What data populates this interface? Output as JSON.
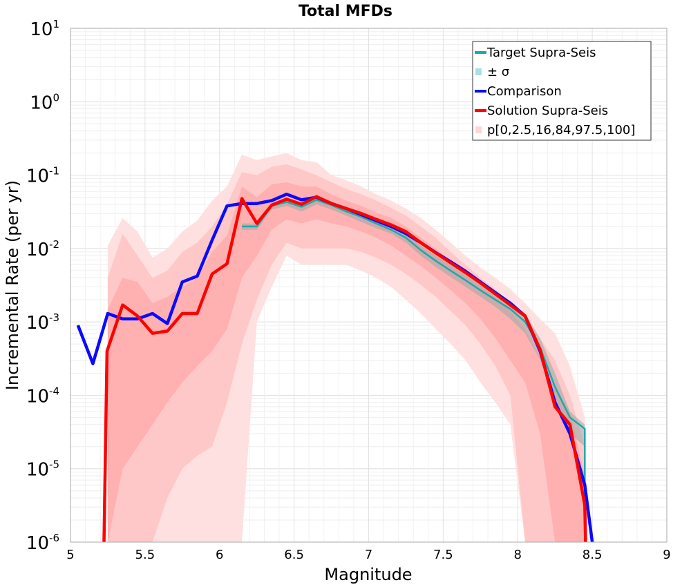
{
  "chart_data": {
    "type": "line",
    "title": "Total MFDs",
    "xlabel": "Magnitude",
    "ylabel": "Incremental Rate (per yr)",
    "xlim": [
      5,
      9
    ],
    "ylim": [
      1e-06,
      10
    ],
    "yscale": "log",
    "grid": true,
    "legend_position": "top-right",
    "x_ticks": [
      "5",
      "5.5",
      "6",
      "6.5",
      "7",
      "7.5",
      "8",
      "8.5",
      "9"
    ],
    "y_ticks": [
      {
        "base": "10",
        "exp": "1"
      },
      {
        "base": "10",
        "exp": "0"
      },
      {
        "base": "10",
        "exp": "-1"
      },
      {
        "base": "10",
        "exp": "-2"
      },
      {
        "base": "10",
        "exp": "-3"
      },
      {
        "base": "10",
        "exp": "-4"
      },
      {
        "base": "10",
        "exp": "-5"
      },
      {
        "base": "10",
        "exp": "-6"
      }
    ],
    "legend": [
      {
        "label": "Target Supra-Seis",
        "kind": "line",
        "color": "#1fa8a8"
      },
      {
        "label": "± σ",
        "kind": "box",
        "color": "#a8e0e4"
      },
      {
        "label": "Comparison",
        "kind": "line",
        "color": "#0a0aff"
      },
      {
        "label": "Solution Supra-Seis",
        "kind": "line",
        "color": "#ff0000"
      },
      {
        "label": "p[0,2.5,16,84,97.5,100]",
        "kind": "box",
        "color": "#ffd6d6"
      }
    ],
    "bands": [
      {
        "name": "p0-p100",
        "color": "#ffe0e0",
        "x": [
          5.25,
          5.35,
          5.45,
          5.55,
          5.65,
          5.75,
          5.85,
          5.95,
          6.05,
          6.15,
          6.25,
          6.35,
          6.45,
          6.55,
          6.65,
          6.75,
          6.85,
          6.95,
          7.05,
          7.15,
          7.25,
          7.35,
          7.45,
          7.55,
          7.65,
          7.75,
          7.85,
          7.95,
          8.05,
          8.15,
          8.25,
          8.35,
          8.45
        ],
        "upper": [
          0.011,
          0.026,
          0.017,
          0.0075,
          0.01,
          0.017,
          0.024,
          0.045,
          0.07,
          0.19,
          0.16,
          0.18,
          0.2,
          0.16,
          0.15,
          0.1,
          0.085,
          0.07,
          0.055,
          0.045,
          0.035,
          0.026,
          0.018,
          0.012,
          0.008,
          0.0055,
          0.004,
          0.0028,
          0.0018,
          0.0011,
          0.0007,
          0.00025,
          5e-05
        ],
        "lower": [
          1e-06,
          5e-06,
          1e-06,
          1e-06,
          1e-06,
          1e-06,
          1e-06,
          1e-06,
          1e-06,
          1e-06,
          0.001,
          0.003,
          0.008,
          0.006,
          0.006,
          0.006,
          0.006,
          0.005,
          0.004,
          0.003,
          0.002,
          0.0013,
          0.0008,
          0.0005,
          0.0003,
          0.00015,
          8e-05,
          4e-05,
          1e-06,
          1e-06,
          1e-06,
          1e-06,
          1e-06
        ]
      },
      {
        "name": "p2.5-p97.5",
        "color": "#ffc8c8",
        "x": [
          5.25,
          5.35,
          5.45,
          5.55,
          5.65,
          5.75,
          5.85,
          5.95,
          6.05,
          6.15,
          6.25,
          6.35,
          6.45,
          6.55,
          6.65,
          6.75,
          6.85,
          6.95,
          7.05,
          7.15,
          7.25,
          7.35,
          7.45,
          7.55,
          7.65,
          7.75,
          7.85,
          7.95,
          8.05,
          8.15,
          8.25,
          8.35,
          8.45
        ],
        "upper": [
          0.004,
          0.016,
          0.008,
          0.004,
          0.005,
          0.009,
          0.012,
          0.02,
          0.04,
          0.11,
          0.1,
          0.13,
          0.14,
          0.12,
          0.1,
          0.08,
          0.065,
          0.055,
          0.045,
          0.036,
          0.028,
          0.02,
          0.014,
          0.009,
          0.006,
          0.004,
          0.0028,
          0.0018,
          0.0011,
          0.0006,
          0.0003,
          0.0001,
          2e-05
        ],
        "lower": [
          1e-06,
          1e-06,
          1e-06,
          1e-06,
          4e-06,
          1e-05,
          1.5e-05,
          2e-05,
          8e-05,
          0.0005,
          0.002,
          0.006,
          0.012,
          0.01,
          0.01,
          0.01,
          0.01,
          0.009,
          0.0075,
          0.006,
          0.0045,
          0.0032,
          0.0022,
          0.0014,
          0.0009,
          0.0005,
          0.00025,
          0.0001,
          1e-06,
          1e-06,
          1e-06,
          1e-06,
          1e-06
        ]
      },
      {
        "name": "p16-p84",
        "color": "#ffb0b0",
        "x": [
          5.25,
          5.35,
          5.45,
          5.55,
          5.65,
          5.75,
          5.85,
          5.95,
          6.05,
          6.15,
          6.25,
          6.35,
          6.45,
          6.55,
          6.65,
          6.75,
          6.85,
          6.95,
          7.05,
          7.15,
          7.25,
          7.35,
          7.45,
          7.55,
          7.65,
          7.75,
          7.85,
          7.95,
          8.05,
          8.15,
          8.25,
          8.35,
          8.45
        ],
        "upper": [
          0.0015,
          0.004,
          0.0035,
          0.0018,
          0.0022,
          0.003,
          0.004,
          0.009,
          0.015,
          0.07,
          0.05,
          0.075,
          0.08,
          0.07,
          0.07,
          0.055,
          0.045,
          0.038,
          0.031,
          0.026,
          0.02,
          0.014,
          0.01,
          0.0068,
          0.0046,
          0.0032,
          0.0022,
          0.0014,
          0.0008,
          0.0003,
          0.00012,
          6e-05,
          8e-06
        ],
        "lower": [
          1e-06,
          1e-05,
          2e-05,
          4e-05,
          8e-05,
          0.00015,
          0.00025,
          0.0004,
          0.0008,
          0.004,
          0.008,
          0.018,
          0.025,
          0.022,
          0.025,
          0.022,
          0.02,
          0.017,
          0.014,
          0.011,
          0.008,
          0.0058,
          0.004,
          0.0027,
          0.0018,
          0.0011,
          0.0006,
          0.0003,
          0.00015,
          3e-05,
          1e-06,
          1e-06,
          1e-06
        ]
      }
    ],
    "sigma_band": {
      "color": "#9aa8a8",
      "x": [
        6.15,
        6.25,
        6.35,
        6.45,
        6.55,
        6.65,
        6.75,
        6.85,
        6.95,
        7.05,
        7.15,
        7.25,
        7.35,
        7.45,
        7.55,
        7.65,
        7.75,
        7.85,
        7.95,
        8.05,
        8.15,
        8.25,
        8.35,
        8.45
      ],
      "upper": [
        0.022,
        0.022,
        0.042,
        0.048,
        0.042,
        0.052,
        0.044,
        0.036,
        0.03,
        0.025,
        0.021,
        0.016,
        0.011,
        0.008,
        0.006,
        0.0044,
        0.0032,
        0.0024,
        0.0018,
        0.0013,
        0.0006,
        0.0002,
        6e-05,
        4e-05
      ],
      "lower": [
        0.018,
        0.018,
        0.034,
        0.038,
        0.032,
        0.04,
        0.034,
        0.028,
        0.023,
        0.019,
        0.016,
        0.012,
        0.008,
        0.0056,
        0.0041,
        0.003,
        0.0022,
        0.0016,
        0.0011,
        0.0007,
        0.0003,
        9e-05,
        3e-05,
        2e-05
      ]
    },
    "series": [
      {
        "name": "Target Supra-Seis",
        "color": "#1fa8a8",
        "width": 2.5,
        "x": [
          6.15,
          6.25,
          6.35,
          6.45,
          6.55,
          6.65,
          6.75,
          6.85,
          6.95,
          7.05,
          7.15,
          7.25,
          7.35,
          7.45,
          7.55,
          7.65,
          7.75,
          7.85,
          7.95,
          8.05,
          8.15,
          8.25,
          8.35,
          8.45,
          8.45
        ],
        "y": [
          0.02,
          0.02,
          0.038,
          0.043,
          0.037,
          0.046,
          0.039,
          0.032,
          0.027,
          0.022,
          0.018,
          0.014,
          0.0095,
          0.0068,
          0.005,
          0.0037,
          0.0027,
          0.002,
          0.0015,
          0.001,
          0.00045,
          0.00013,
          5e-05,
          3.5e-05,
          1e-06
        ]
      },
      {
        "name": "Comparison",
        "color": "#0a0aff",
        "width": 4.5,
        "x": [
          5.05,
          5.15,
          5.25,
          5.35,
          5.45,
          5.55,
          5.65,
          5.75,
          5.85,
          5.95,
          6.05,
          6.15,
          6.25,
          6.35,
          6.45,
          6.55,
          6.65,
          6.75,
          6.85,
          6.95,
          7.05,
          7.15,
          7.25,
          7.35,
          7.45,
          7.55,
          7.65,
          7.75,
          7.85,
          7.95,
          8.05,
          8.15,
          8.25,
          8.35,
          8.45,
          8.5
        ],
        "y": [
          0.0009,
          0.00027,
          0.0013,
          0.0011,
          0.0011,
          0.0013,
          0.00095,
          0.0035,
          0.0042,
          0.013,
          0.038,
          0.041,
          0.041,
          0.045,
          0.055,
          0.046,
          0.05,
          0.041,
          0.035,
          0.029,
          0.024,
          0.02,
          0.016,
          0.012,
          0.0088,
          0.0066,
          0.0049,
          0.0035,
          0.0025,
          0.0018,
          0.0012,
          0.0004,
          8e-05,
          3e-05,
          6e-06,
          1e-06
        ]
      },
      {
        "name": "Solution Supra-Seis",
        "color": "#ff0000",
        "width": 4.5,
        "x": [
          5.225,
          5.245,
          5.35,
          5.45,
          5.55,
          5.65,
          5.75,
          5.85,
          5.95,
          6.05,
          6.15,
          6.25,
          6.35,
          6.45,
          6.55,
          6.65,
          6.75,
          6.85,
          6.95,
          7.05,
          7.15,
          7.25,
          7.35,
          7.45,
          7.55,
          7.65,
          7.75,
          7.85,
          7.95,
          8.05,
          8.15,
          8.25,
          8.35,
          8.45,
          8.455
        ],
        "y": [
          1e-06,
          0.0004,
          0.0017,
          0.0012,
          0.0007,
          0.00075,
          0.0013,
          0.0013,
          0.0045,
          0.0062,
          0.048,
          0.022,
          0.039,
          0.047,
          0.04,
          0.051,
          0.041,
          0.035,
          0.03,
          0.025,
          0.021,
          0.017,
          0.012,
          0.0087,
          0.0064,
          0.0047,
          0.0034,
          0.0024,
          0.0017,
          0.0012,
          0.00042,
          7e-05,
          4e-05,
          3.2e-06,
          1e-06
        ]
      }
    ]
  }
}
